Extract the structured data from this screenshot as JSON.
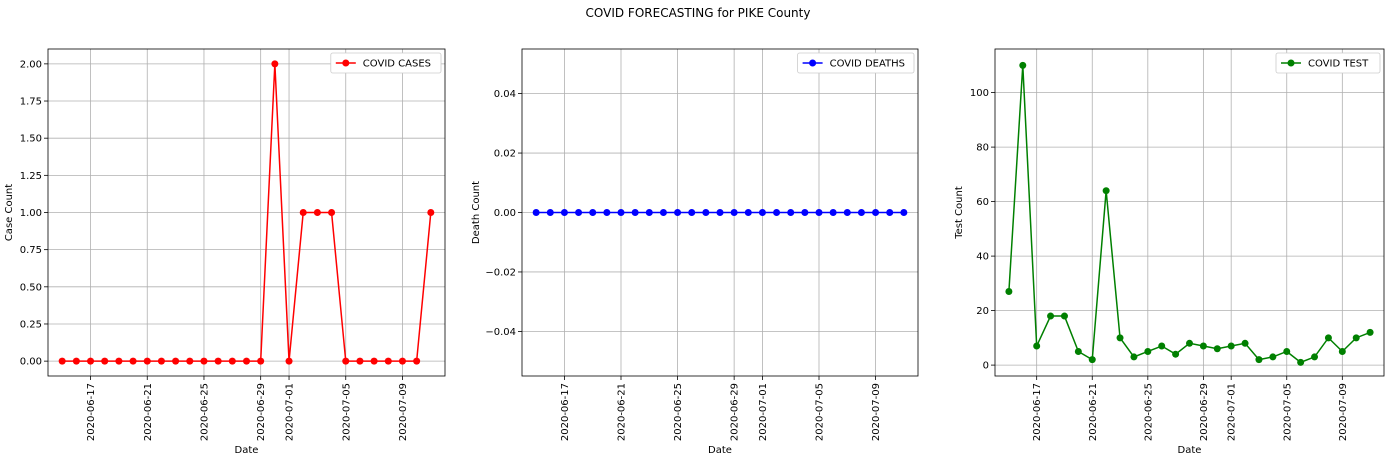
{
  "figure": {
    "title": "COVID FORECASTING for PIKE County"
  },
  "chart_data": [
    {
      "type": "line",
      "title": "",
      "xlabel": "Date",
      "ylabel": "Case Count",
      "color": "#ff0000",
      "legend": "COVID CASES",
      "legend_position": "top-right",
      "grid": true,
      "x_start": "2020-06-15",
      "x": [
        "2020-06-15",
        "2020-06-16",
        "2020-06-17",
        "2020-06-18",
        "2020-06-19",
        "2020-06-20",
        "2020-06-21",
        "2020-06-22",
        "2020-06-23",
        "2020-06-24",
        "2020-06-25",
        "2020-06-26",
        "2020-06-27",
        "2020-06-28",
        "2020-06-29",
        "2020-06-30",
        "2020-07-01",
        "2020-07-02",
        "2020-07-03",
        "2020-07-04",
        "2020-07-05",
        "2020-07-06",
        "2020-07-07",
        "2020-07-08",
        "2020-07-09",
        "2020-07-10",
        "2020-07-11"
      ],
      "values": [
        0,
        0,
        0,
        0,
        0,
        0,
        0,
        0,
        0,
        0,
        0,
        0,
        0,
        0,
        0,
        2,
        0,
        1,
        1,
        1,
        0,
        0,
        0,
        0,
        0,
        0,
        1
      ],
      "xlim": [
        "2020-06-14",
        "2020-07-12"
      ],
      "ylim": [
        -0.1,
        2.1
      ],
      "yticks": [
        "0.00",
        "0.25",
        "0.50",
        "0.75",
        "1.00",
        "1.25",
        "1.50",
        "1.75",
        "2.00"
      ],
      "xticks": [
        "2020-06-17",
        "2020-06-21",
        "2020-06-25",
        "2020-06-29",
        "2020-07-01",
        "2020-07-05",
        "2020-07-09"
      ]
    },
    {
      "type": "line",
      "title": "",
      "xlabel": "Date",
      "ylabel": "Death Count",
      "color": "#0000ff",
      "legend": "COVID DEATHS",
      "legend_position": "top-right",
      "grid": true,
      "x_start": "2020-06-15",
      "x": [
        "2020-06-15",
        "2020-06-16",
        "2020-06-17",
        "2020-06-18",
        "2020-06-19",
        "2020-06-20",
        "2020-06-21",
        "2020-06-22",
        "2020-06-23",
        "2020-06-24",
        "2020-06-25",
        "2020-06-26",
        "2020-06-27",
        "2020-06-28",
        "2020-06-29",
        "2020-06-30",
        "2020-07-01",
        "2020-07-02",
        "2020-07-03",
        "2020-07-04",
        "2020-07-05",
        "2020-07-06",
        "2020-07-07",
        "2020-07-08",
        "2020-07-09",
        "2020-07-10",
        "2020-07-11"
      ],
      "values": [
        0,
        0,
        0,
        0,
        0,
        0,
        0,
        0,
        0,
        0,
        0,
        0,
        0,
        0,
        0,
        0,
        0,
        0,
        0,
        0,
        0,
        0,
        0,
        0,
        0,
        0,
        0
      ],
      "xlim": [
        "2020-06-14",
        "2020-07-12"
      ],
      "ylim": [
        -0.055,
        0.055
      ],
      "yticks": [
        "−0.04",
        "−0.02",
        "0.00",
        "0.02",
        "0.04"
      ],
      "ytick_values": [
        -0.04,
        -0.02,
        0,
        0.02,
        0.04
      ],
      "xticks": [
        "2020-06-17",
        "2020-06-21",
        "2020-06-25",
        "2020-06-29",
        "2020-07-01",
        "2020-07-05",
        "2020-07-09"
      ]
    },
    {
      "type": "line",
      "title": "",
      "xlabel": "Date",
      "ylabel": "Test Count",
      "color": "#008000",
      "legend": "COVID TEST",
      "legend_position": "top-right",
      "grid": true,
      "x_start": "2020-06-15",
      "x": [
        "2020-06-15",
        "2020-06-16",
        "2020-06-17",
        "2020-06-18",
        "2020-06-19",
        "2020-06-20",
        "2020-06-21",
        "2020-06-22",
        "2020-06-23",
        "2020-06-24",
        "2020-06-25",
        "2020-06-26",
        "2020-06-27",
        "2020-06-28",
        "2020-06-29",
        "2020-06-30",
        "2020-07-01",
        "2020-07-02",
        "2020-07-03",
        "2020-07-04",
        "2020-07-05",
        "2020-07-06",
        "2020-07-07",
        "2020-07-08",
        "2020-07-09",
        "2020-07-10",
        "2020-07-11"
      ],
      "values": [
        27,
        110,
        7,
        18,
        18,
        5,
        2,
        64,
        10,
        3,
        5,
        7,
        4,
        8,
        7,
        6,
        7,
        8,
        2,
        3,
        5,
        1,
        3,
        10,
        5,
        10,
        12
      ],
      "xlim": [
        "2020-06-14",
        "2020-07-12"
      ],
      "ylim": [
        -4,
        116
      ],
      "yticks": [
        "0",
        "20",
        "40",
        "60",
        "80",
        "100"
      ],
      "ytick_values": [
        0,
        20,
        40,
        60,
        80,
        100
      ],
      "xticks": [
        "2020-06-17",
        "2020-06-21",
        "2020-06-25",
        "2020-06-29",
        "2020-07-01",
        "2020-07-05",
        "2020-07-09"
      ]
    }
  ]
}
